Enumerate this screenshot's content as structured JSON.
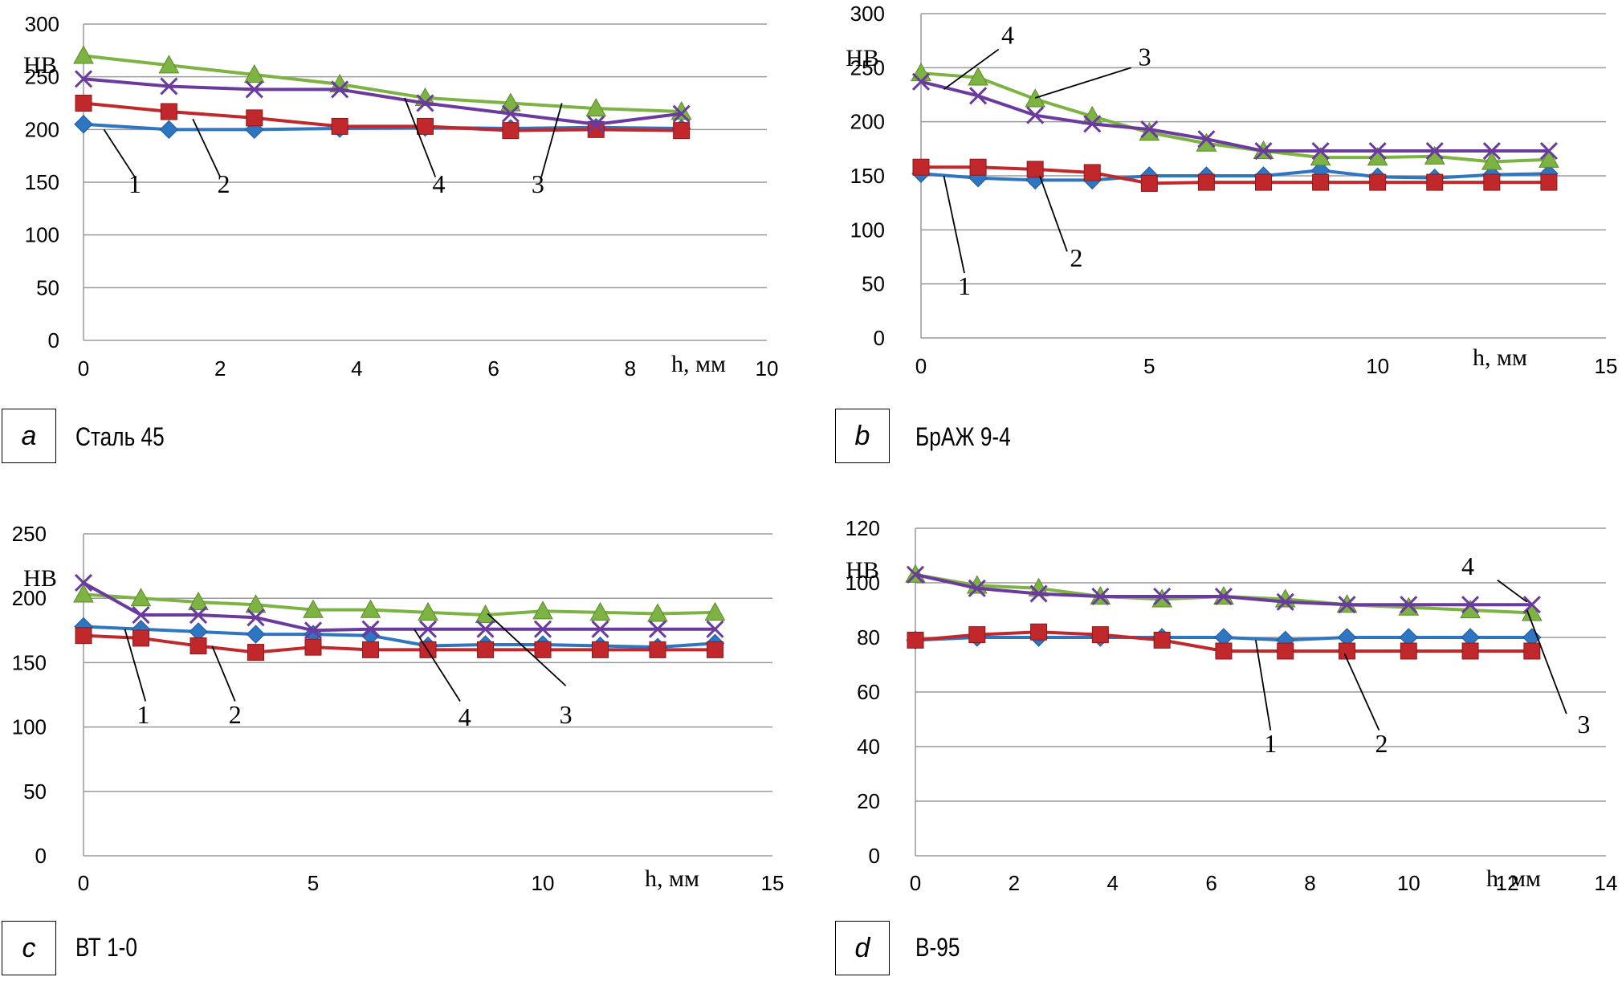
{
  "figure": {
    "colors": {
      "series1": "#2e75c2",
      "series2": "#c0282c",
      "series3": "#7cb342",
      "series4": "#6a3a9e",
      "grid": "#9a9a9a",
      "text": "#000000"
    },
    "x_unit_label": "h, мм"
  },
  "chart_data": [
    {
      "type": "line",
      "panel_letter": "a",
      "title": "Сталь 45",
      "ylabel": "НВ",
      "xlabel": "h, мм",
      "xlim": [
        0,
        10
      ],
      "ylim": [
        0,
        300
      ],
      "xticks": [
        0,
        2,
        4,
        6,
        8,
        10
      ],
      "yticks": [
        0,
        50,
        100,
        150,
        200,
        250,
        300
      ],
      "x": [
        0,
        1.25,
        2.5,
        3.75,
        5,
        6.25,
        7.5,
        8.75
      ],
      "series": [
        {
          "name": "1",
          "marker": "diamond",
          "values": [
            205,
            200,
            200,
            201,
            202,
            201,
            202,
            201
          ]
        },
        {
          "name": "2",
          "marker": "square",
          "values": [
            225,
            217,
            211,
            203,
            203,
            199,
            200,
            199
          ]
        },
        {
          "name": "3",
          "marker": "triangle",
          "values": [
            270,
            261,
            252,
            243,
            230,
            225,
            220,
            217
          ]
        },
        {
          "name": "4",
          "marker": "x",
          "values": [
            248,
            241,
            238,
            238,
            225,
            215,
            205,
            215
          ]
        }
      ],
      "annotations": [
        {
          "label": "1",
          "from": [
            0.3,
            200
          ],
          "to": [
            0.75,
            155
          ],
          "text_at": [
            0.75,
            140
          ]
        },
        {
          "label": "2",
          "from": [
            1.6,
            210
          ],
          "to": [
            2.0,
            155
          ],
          "text_at": [
            2.05,
            140
          ]
        },
        {
          "label": "4",
          "from": [
            4.7,
            230
          ],
          "to": [
            5.15,
            155
          ],
          "text_at": [
            5.2,
            140
          ]
        },
        {
          "label": "3",
          "from": [
            7.0,
            225
          ],
          "to": [
            6.7,
            155
          ],
          "text_at": [
            6.65,
            140
          ]
        }
      ]
    },
    {
      "type": "line",
      "panel_letter": "b",
      "title": "БрАЖ 9-4",
      "ylabel": "НВ",
      "xlabel": "h, мм",
      "xlim": [
        0,
        15
      ],
      "ylim": [
        0,
        300
      ],
      "xticks": [
        0,
        5,
        10,
        15
      ],
      "yticks": [
        0,
        50,
        100,
        150,
        200,
        250,
        300
      ],
      "x": [
        0,
        1.25,
        2.5,
        3.75,
        5,
        6.25,
        7.5,
        8.75,
        10,
        11.25,
        12.5,
        13.75
      ],
      "series": [
        {
          "name": "1",
          "marker": "diamond",
          "values": [
            152,
            148,
            146,
            146,
            150,
            150,
            150,
            155,
            149,
            148,
            151,
            152
          ]
        },
        {
          "name": "2",
          "marker": "square",
          "values": [
            158,
            158,
            156,
            153,
            143,
            144,
            144,
            144,
            144,
            144,
            144,
            144
          ]
        },
        {
          "name": "3",
          "marker": "triangle",
          "values": [
            245,
            241,
            221,
            205,
            190,
            180,
            173,
            167,
            167,
            168,
            163,
            165
          ]
        },
        {
          "name": "4",
          "marker": "x",
          "values": [
            237,
            224,
            206,
            198,
            193,
            184,
            173,
            173,
            173,
            173,
            173,
            173
          ]
        }
      ],
      "annotations": [
        {
          "label": "4",
          "from": [
            0.5,
            230
          ],
          "to": [
            1.7,
            267
          ],
          "text_at": [
            1.9,
            272
          ]
        },
        {
          "label": "3",
          "from": [
            2.5,
            222
          ],
          "to": [
            4.6,
            250
          ],
          "text_at": [
            4.9,
            252
          ]
        },
        {
          "label": "1",
          "from": [
            0.5,
            150
          ],
          "to": [
            0.95,
            60
          ],
          "text_at": [
            0.95,
            40
          ]
        },
        {
          "label": "2",
          "from": [
            2.6,
            150
          ],
          "to": [
            3.2,
            80
          ],
          "text_at": [
            3.4,
            66
          ]
        }
      ]
    },
    {
      "type": "line",
      "panel_letter": "c",
      "title": "ВТ 1-0",
      "ylabel": "НВ",
      "xlabel": "h, мм",
      "xlim": [
        0,
        15
      ],
      "ylim": [
        0,
        250
      ],
      "xticks": [
        0,
        5,
        10,
        15
      ],
      "yticks": [
        0,
        50,
        100,
        150,
        200,
        250
      ],
      "x": [
        0,
        1.25,
        2.5,
        3.75,
        5,
        6.25,
        7.5,
        8.75,
        10,
        11.25,
        12.5,
        13.75
      ],
      "series": [
        {
          "name": "1",
          "marker": "diamond",
          "values": [
            178,
            176,
            174,
            172,
            172,
            171,
            163,
            164,
            164,
            163,
            162,
            165
          ]
        },
        {
          "name": "2",
          "marker": "square",
          "values": [
            171,
            169,
            163,
            158,
            162,
            160,
            160,
            160,
            160,
            160,
            160,
            160
          ]
        },
        {
          "name": "3",
          "marker": "triangle",
          "values": [
            203,
            200,
            197,
            195,
            191,
            191,
            189,
            187,
            190,
            189,
            188,
            189
          ]
        },
        {
          "name": "4",
          "marker": "x",
          "values": [
            212,
            187,
            187,
            185,
            175,
            176,
            176,
            176,
            176,
            176,
            176,
            176
          ]
        }
      ],
      "annotations": [
        {
          "label": "1",
          "from": [
            0.9,
            176
          ],
          "to": [
            1.35,
            120
          ],
          "text_at": [
            1.3,
            103
          ]
        },
        {
          "label": "2",
          "from": [
            2.8,
            163
          ],
          "to": [
            3.3,
            120
          ],
          "text_at": [
            3.3,
            103
          ]
        },
        {
          "label": "4",
          "from": [
            7.2,
            176
          ],
          "to": [
            8.2,
            120
          ],
          "text_at": [
            8.3,
            101
          ]
        },
        {
          "label": "3",
          "from": [
            8.8,
            188
          ],
          "to": [
            10.5,
            132
          ],
          "text_at": [
            10.5,
            103
          ]
        }
      ]
    },
    {
      "type": "line",
      "panel_letter": "d",
      "title": "В-95",
      "ylabel": "НВ",
      "xlabel": "h, мм",
      "xlim": [
        0,
        14
      ],
      "ylim": [
        0,
        120
      ],
      "xticks": [
        0,
        2,
        4,
        6,
        8,
        10,
        12,
        14
      ],
      "yticks": [
        0,
        20,
        40,
        60,
        80,
        100,
        120
      ],
      "x": [
        0,
        1.25,
        2.5,
        3.75,
        5,
        6.25,
        7.5,
        8.75,
        10,
        11.25,
        12.5
      ],
      "series": [
        {
          "name": "1",
          "marker": "diamond",
          "values": [
            79,
            80,
            80,
            80,
            80,
            80,
            79,
            80,
            80,
            80,
            80
          ]
        },
        {
          "name": "2",
          "marker": "square",
          "values": [
            79,
            81,
            82,
            81,
            79,
            75,
            75,
            75,
            75,
            75,
            75
          ]
        },
        {
          "name": "3",
          "marker": "triangle",
          "values": [
            103,
            99,
            98,
            95,
            94,
            95,
            94,
            92,
            91,
            90,
            89
          ]
        },
        {
          "name": "4",
          "marker": "x",
          "values": [
            103,
            98,
            96,
            95,
            95,
            95,
            93,
            92,
            92,
            92,
            92
          ]
        }
      ],
      "annotations": [
        {
          "label": "4",
          "from": [
            11.8,
            101
          ],
          "to": [
            12.4,
            93
          ],
          "text_at": [
            11.2,
            103
          ]
        },
        {
          "label": "3",
          "from": [
            12.4,
            90
          ],
          "to": [
            13.2,
            52
          ],
          "text_at": [
            13.55,
            45
          ]
        },
        {
          "label": "1",
          "from": [
            6.9,
            79
          ],
          "to": [
            7.2,
            46
          ],
          "text_at": [
            7.2,
            38
          ]
        },
        {
          "label": "2",
          "from": [
            8.7,
            74
          ],
          "to": [
            9.4,
            46
          ],
          "text_at": [
            9.45,
            38
          ]
        }
      ]
    }
  ]
}
